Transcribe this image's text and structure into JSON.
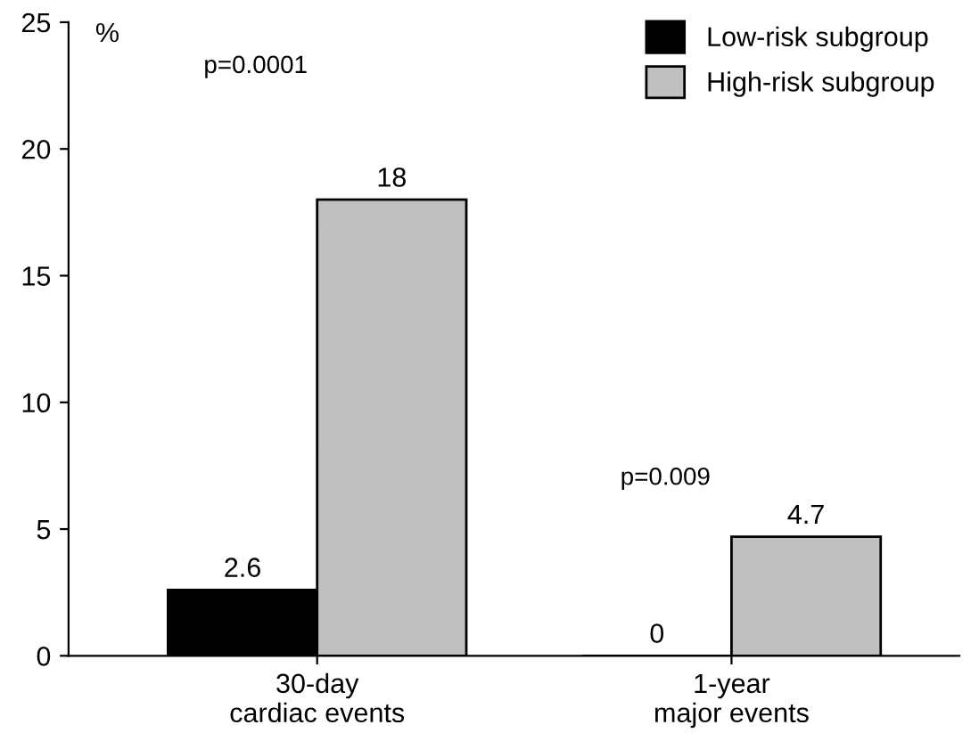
{
  "chart_data": {
    "type": "bar",
    "ylabel": "%",
    "categories": [
      "30-day\ncardiac events",
      "1-year\nmajor events"
    ],
    "series": [
      {
        "name": "Low-risk subgroup",
        "color": "#000000",
        "values": [
          2.6,
          0
        ]
      },
      {
        "name": "High-risk subgroup",
        "color": "#c0c0c0",
        "values": [
          18,
          4.7
        ]
      }
    ],
    "ylim": [
      0,
      25
    ],
    "yticks": [
      0,
      5,
      10,
      15,
      20,
      25
    ],
    "data_labels": true,
    "legend": "top right",
    "grid": false,
    "annotations": [
      "p=0.0001",
      "p=0.009"
    ]
  }
}
